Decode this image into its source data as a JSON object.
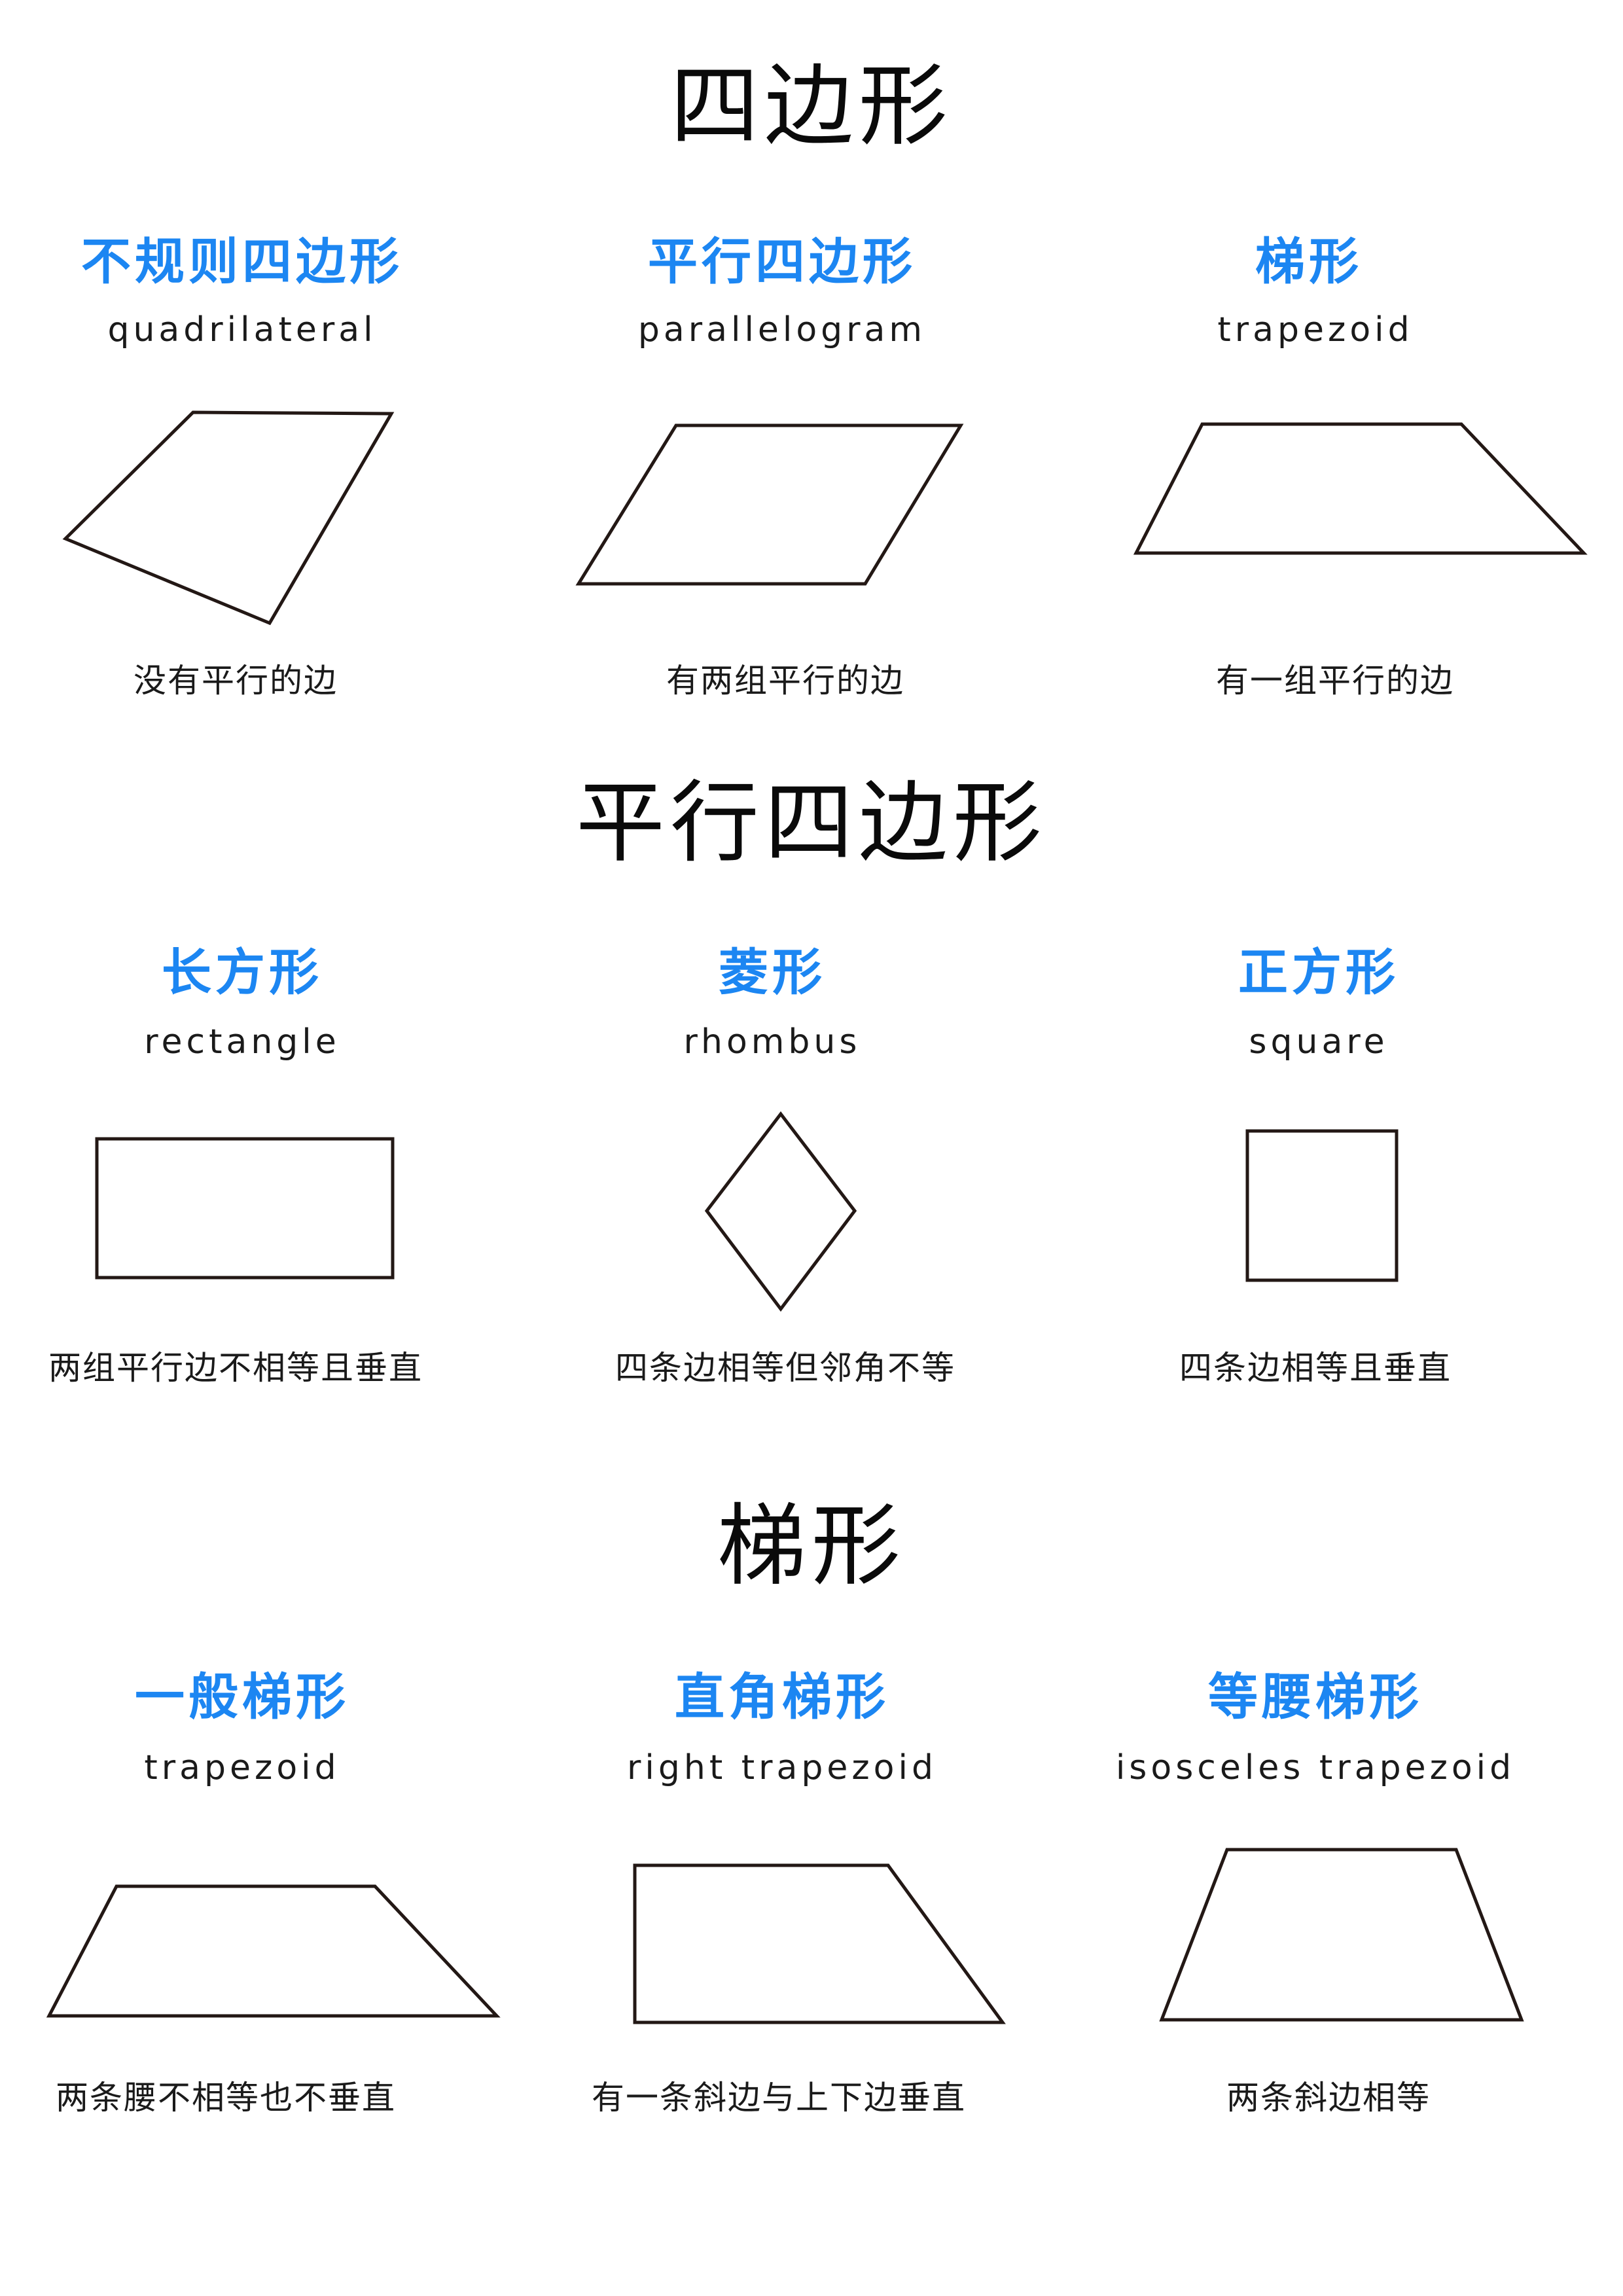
{
  "sections": [
    {
      "title": "四边形",
      "items": [
        {
          "cn": "不规则四边形",
          "en": "quadrilateral",
          "desc": "没有平行的边"
        },
        {
          "cn": "平行四边形",
          "en": "parallelogram",
          "desc": "有两组平行的边"
        },
        {
          "cn": "梯形",
          "en": "trapezoid",
          "desc": "有一组平行的边"
        }
      ]
    },
    {
      "title": "平行四边形",
      "items": [
        {
          "cn": "长方形",
          "en": "rectangle",
          "desc": "两组平行边不相等且垂直"
        },
        {
          "cn": "菱形",
          "en": "rhombus",
          "desc": "四条边相等但邻角不等"
        },
        {
          "cn": "正方形",
          "en": "square",
          "desc": "四条边相等且垂直"
        }
      ]
    },
    {
      "title": "梯形",
      "items": [
        {
          "cn": "一般梯形",
          "en": "trapezoid",
          "desc": "两条腰不相等也不垂直"
        },
        {
          "cn": "直角梯形",
          "en": "right trapezoid",
          "desc": "有一条斜边与上下边垂直"
        },
        {
          "cn": "等腰梯形",
          "en": "isosceles trapezoid",
          "desc": "两条斜边相等"
        }
      ]
    }
  ],
  "colors": {
    "title": "#0a0a0a",
    "name_accent": "#1c86f2",
    "text": "#1a1a1a",
    "stroke": "#231815"
  }
}
